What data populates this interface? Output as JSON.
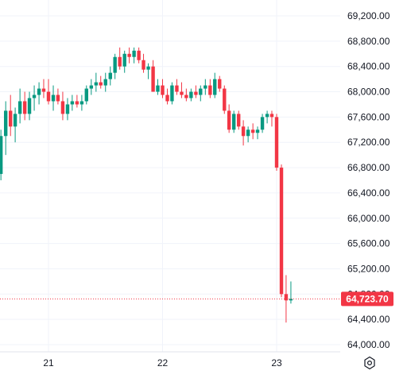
{
  "chart_data": {
    "type": "candlestick",
    "title": "",
    "xlabel": "",
    "ylabel": "",
    "ylim": [
      63900,
      69500
    ],
    "grid": true,
    "y_ticks": [
      "64,000.00",
      "64,400.00",
      "64,800.00",
      "65,200.00",
      "65,600.00",
      "66,000.00",
      "66,400.00",
      "66,800.00",
      "67,200.00",
      "67,600.00",
      "68,000.00",
      "68,400.00",
      "68,800.00",
      "69,200.00"
    ],
    "x_ticks": [
      {
        "label": "21",
        "t": 21.0
      },
      {
        "label": "22",
        "t": 22.0
      },
      {
        "label": "23",
        "t": 23.0
      }
    ],
    "last_price": 64723.7,
    "last_price_label": "64,723.70",
    "colors": {
      "up": "#089981",
      "down": "#f23645",
      "grid": "#f0f3fa",
      "text": "#131722"
    },
    "candles": [
      [
        20.583,
        66700,
        67400,
        66600,
        67300
      ],
      [
        20.625,
        67300,
        67850,
        67000,
        67700
      ],
      [
        20.667,
        67700,
        67950,
        67300,
        67450
      ],
      [
        20.708,
        67450,
        67750,
        67200,
        67650
      ],
      [
        20.75,
        67650,
        68050,
        67500,
        67850
      ],
      [
        20.792,
        67850,
        68000,
        67550,
        67650
      ],
      [
        20.833,
        67650,
        68000,
        67550,
        67900
      ],
      [
        20.875,
        67900,
        68100,
        67700,
        67950
      ],
      [
        20.917,
        67950,
        68150,
        67800,
        68050
      ],
      [
        20.958,
        68050,
        68200,
        67900,
        68000
      ],
      [
        21.0,
        68000,
        68200,
        67800,
        67850
      ],
      [
        21.042,
        67850,
        68100,
        67700,
        67950
      ],
      [
        21.083,
        67950,
        68050,
        67800,
        67850
      ],
      [
        21.125,
        67850,
        68000,
        67550,
        67650
      ],
      [
        21.167,
        67650,
        67900,
        67550,
        67800
      ],
      [
        21.208,
        67800,
        67950,
        67700,
        67850
      ],
      [
        21.25,
        67850,
        67950,
        67750,
        67800
      ],
      [
        21.292,
        67800,
        67950,
        67700,
        67850
      ],
      [
        21.333,
        67850,
        68100,
        67800,
        68050
      ],
      [
        21.375,
        68050,
        68200,
        67950,
        68100
      ],
      [
        21.417,
        68100,
        68300,
        68000,
        68150
      ],
      [
        21.458,
        68150,
        68250,
        68050,
        68100
      ],
      [
        21.5,
        68100,
        68300,
        68000,
        68200
      ],
      [
        21.542,
        68200,
        68400,
        68100,
        68300
      ],
      [
        21.583,
        68300,
        68600,
        68200,
        68550
      ],
      [
        21.625,
        68550,
        68700,
        68350,
        68400
      ],
      [
        21.667,
        68400,
        68650,
        68300,
        68600
      ],
      [
        21.708,
        68600,
        68700,
        68450,
        68550
      ],
      [
        21.75,
        68550,
        68700,
        68450,
        68650
      ],
      [
        21.792,
        68650,
        68700,
        68450,
        68500
      ],
      [
        21.833,
        68500,
        68600,
        68300,
        68350
      ],
      [
        21.875,
        68350,
        68450,
        68200,
        68400
      ],
      [
        21.917,
        68400,
        68500,
        68000,
        68000
      ],
      [
        21.958,
        68000,
        68200,
        67950,
        68100
      ],
      [
        22.0,
        68100,
        68200,
        67900,
        67950
      ],
      [
        22.042,
        67950,
        68050,
        67800,
        67850
      ],
      [
        22.083,
        67850,
        68150,
        67800,
        68100
      ],
      [
        22.125,
        68100,
        68200,
        67950,
        68000
      ],
      [
        22.167,
        68000,
        68150,
        67900,
        67950
      ],
      [
        22.208,
        67950,
        68050,
        67850,
        67900
      ],
      [
        22.25,
        67900,
        68050,
        67850,
        68000
      ],
      [
        22.292,
        68000,
        68100,
        67900,
        67950
      ],
      [
        22.333,
        67950,
        68100,
        67850,
        68050
      ],
      [
        22.375,
        68050,
        68200,
        67950,
        68100
      ],
      [
        22.417,
        68100,
        68200,
        67900,
        67950
      ],
      [
        22.458,
        67950,
        68300,
        67900,
        68200
      ],
      [
        22.5,
        68200,
        68250,
        68000,
        68050
      ],
      [
        22.542,
        68050,
        68100,
        67650,
        67700
      ],
      [
        22.583,
        67700,
        67800,
        67350,
        67400
      ],
      [
        22.625,
        67400,
        67700,
        67350,
        67650
      ],
      [
        22.667,
        67650,
        67700,
        67400,
        67450
      ],
      [
        22.708,
        67450,
        67550,
        67150,
        67300
      ],
      [
        22.75,
        67300,
        67450,
        67200,
        67400
      ],
      [
        22.792,
        67400,
        67500,
        67250,
        67350
      ],
      [
        22.833,
        67350,
        67450,
        67250,
        67400
      ],
      [
        22.875,
        67400,
        67650,
        67350,
        67600
      ],
      [
        22.917,
        67600,
        67700,
        67500,
        67650
      ],
      [
        22.958,
        67650,
        67700,
        67450,
        67600
      ],
      [
        23.0,
        67600,
        67650,
        66750,
        66800
      ],
      [
        23.042,
        66800,
        66850,
        64750,
        64800
      ],
      [
        23.083,
        64800,
        65100,
        64350,
        64700
      ],
      [
        23.125,
        64700,
        65000,
        64650,
        64724
      ]
    ]
  }
}
